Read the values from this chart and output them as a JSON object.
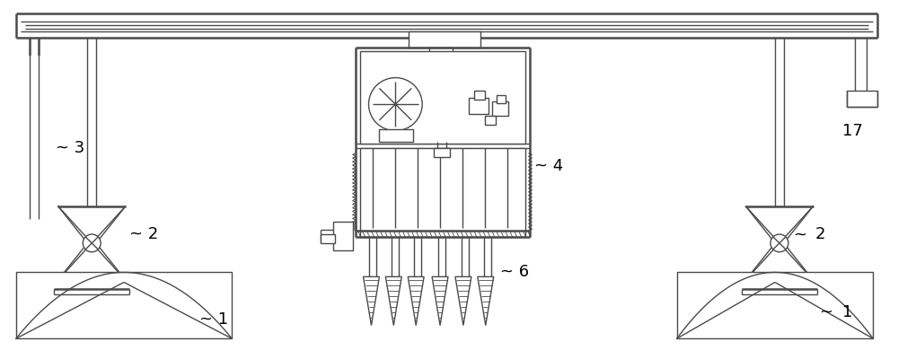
{
  "bg_color": "#ffffff",
  "line_color": "#4a4a4a",
  "lw": 1.0,
  "lw2": 1.8,
  "lw3": 2.5,
  "figw": 10.0,
  "figh": 3.9,
  "dpi": 100
}
